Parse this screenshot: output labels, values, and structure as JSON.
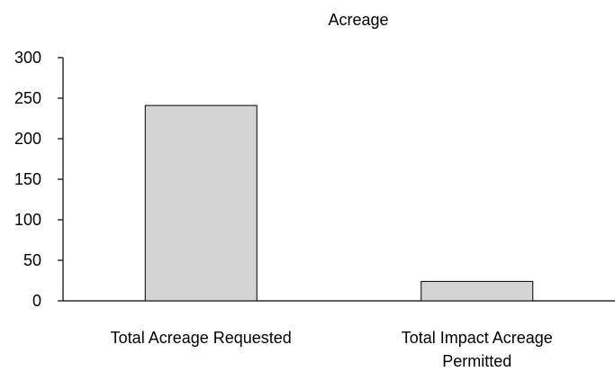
{
  "chart_data": {
    "type": "bar",
    "title": "Acreage",
    "xlabel": "",
    "ylabel": "",
    "categories": [
      [
        "Total Acreage Requested"
      ],
      [
        "Total Impact Acreage",
        "Permitted"
      ]
    ],
    "series": [
      {
        "values": [
          241,
          24
        ]
      }
    ],
    "ylim": [
      0,
      300
    ],
    "yticks": [
      "0",
      "50",
      "100",
      "150",
      "200",
      "250",
      "300"
    ],
    "grid": false,
    "legend": "none",
    "colors": {
      "bar_fill": "#d4d4d4",
      "bar_stroke": "#000000",
      "axis": "#000000",
      "background": "#ffffff"
    }
  }
}
